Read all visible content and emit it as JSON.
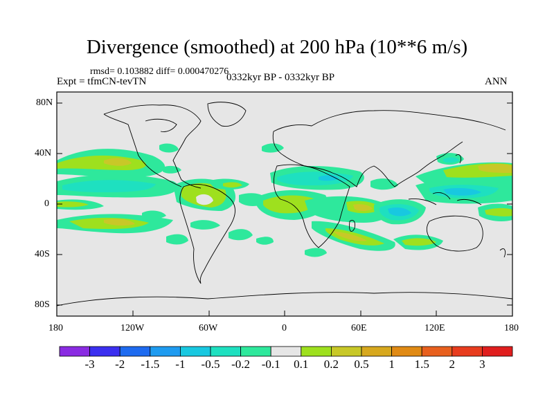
{
  "title": "Divergence (smoothed) at 200 hPa (10**6 m/s)",
  "stats": "rmsd= 0.103882 diff= 0.000470276",
  "experiment": "Expt = tfmCN-tevTN",
  "period": "0332kyr BP - 0332kyr BP",
  "season": "ANN",
  "lat_ticks": [
    "80N",
    "40N",
    "0",
    "40S",
    "80S"
  ],
  "lon_ticks": [
    "180",
    "120W",
    "60W",
    "0",
    "60E",
    "120E",
    "180"
  ],
  "colorbar": {
    "labels": [
      "-3",
      "-2",
      "-1.5",
      "-1",
      "-0.5",
      "-0.2",
      "-0.1",
      "0.1",
      "0.2",
      "0.5",
      "1",
      "1.5",
      "2",
      "3"
    ],
    "colors": [
      "#8a2be2",
      "#3b2ff0",
      "#1e6bf0",
      "#1e9bf0",
      "#18c8e0",
      "#1ee0c0",
      "#2ee89c",
      "#e6e6e6",
      "#9ee01e",
      "#c8c828",
      "#d7a81e",
      "#e08a14",
      "#e8601e",
      "#e83c1e",
      "#e01e1e"
    ]
  }
}
